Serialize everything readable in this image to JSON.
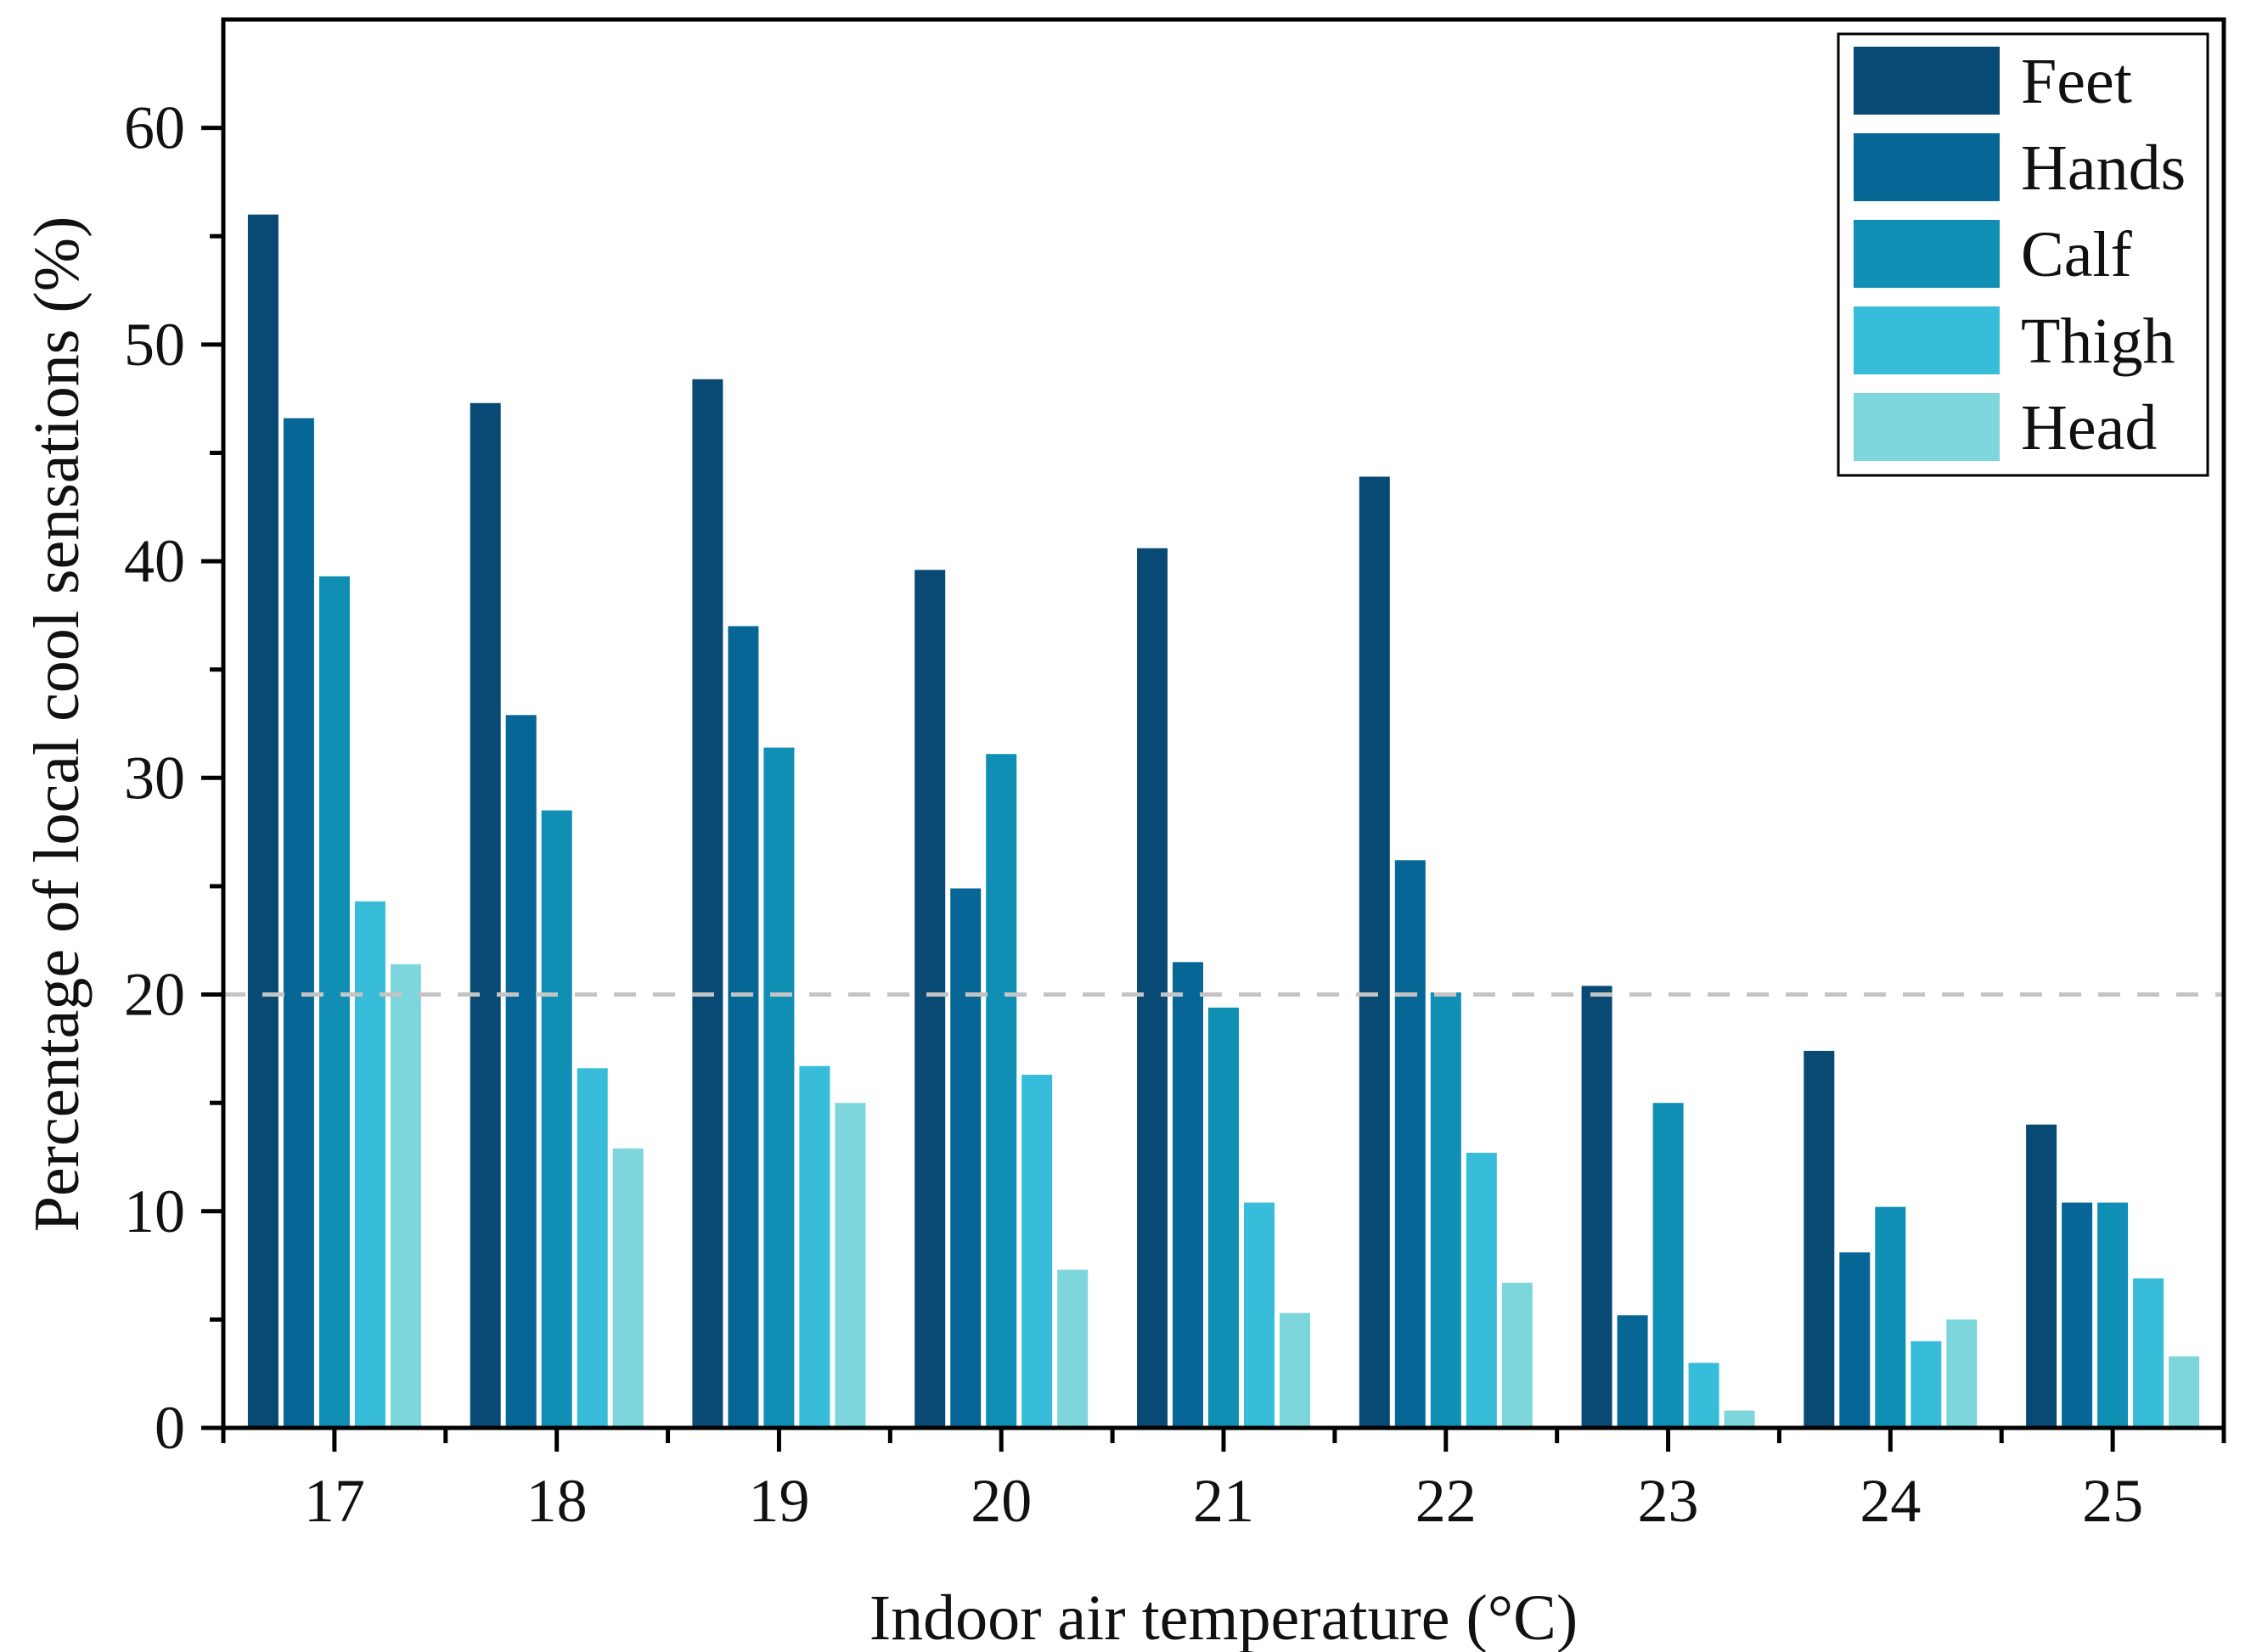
{
  "chart_data": {
    "type": "bar",
    "title": "",
    "xlabel": "Indoor air temperature (°C)",
    "ylabel": "Percentage of local cool sensations (%)",
    "categories": [
      "17",
      "18",
      "19",
      "20",
      "21",
      "22",
      "23",
      "24",
      "25"
    ],
    "ylim": [
      0,
      65
    ],
    "yticks": [
      "0",
      "10",
      "20",
      "30",
      "40",
      "50",
      "60"
    ],
    "grid": false,
    "legend_position": "top-right",
    "reference_line": {
      "y": 20,
      "style": "dashed",
      "color": "#c4c4c4"
    },
    "series": [
      {
        "name": "Feet",
        "color": "#084a73",
        "values": [
          56.0,
          47.3,
          48.4,
          39.6,
          40.6,
          43.9,
          20.4,
          17.4,
          14.0
        ]
      },
      {
        "name": "Hands",
        "color": "#066797",
        "values": [
          46.6,
          32.9,
          37.0,
          24.9,
          21.5,
          26.2,
          5.2,
          8.1,
          10.4
        ]
      },
      {
        "name": "Calf",
        "color": "#0f8fb3",
        "values": [
          39.3,
          28.5,
          31.4,
          31.1,
          19.4,
          20.1,
          15.0,
          10.2,
          10.4
        ]
      },
      {
        "name": "Thigh",
        "color": "#37bcd9",
        "values": [
          24.3,
          16.6,
          16.7,
          16.3,
          10.4,
          12.7,
          3.0,
          4.0,
          6.9
        ]
      },
      {
        "name": "Head",
        "color": "#7dd6db",
        "values": [
          21.4,
          12.9,
          15.0,
          7.3,
          5.3,
          6.7,
          0.8,
          5.0,
          3.3
        ]
      }
    ]
  }
}
